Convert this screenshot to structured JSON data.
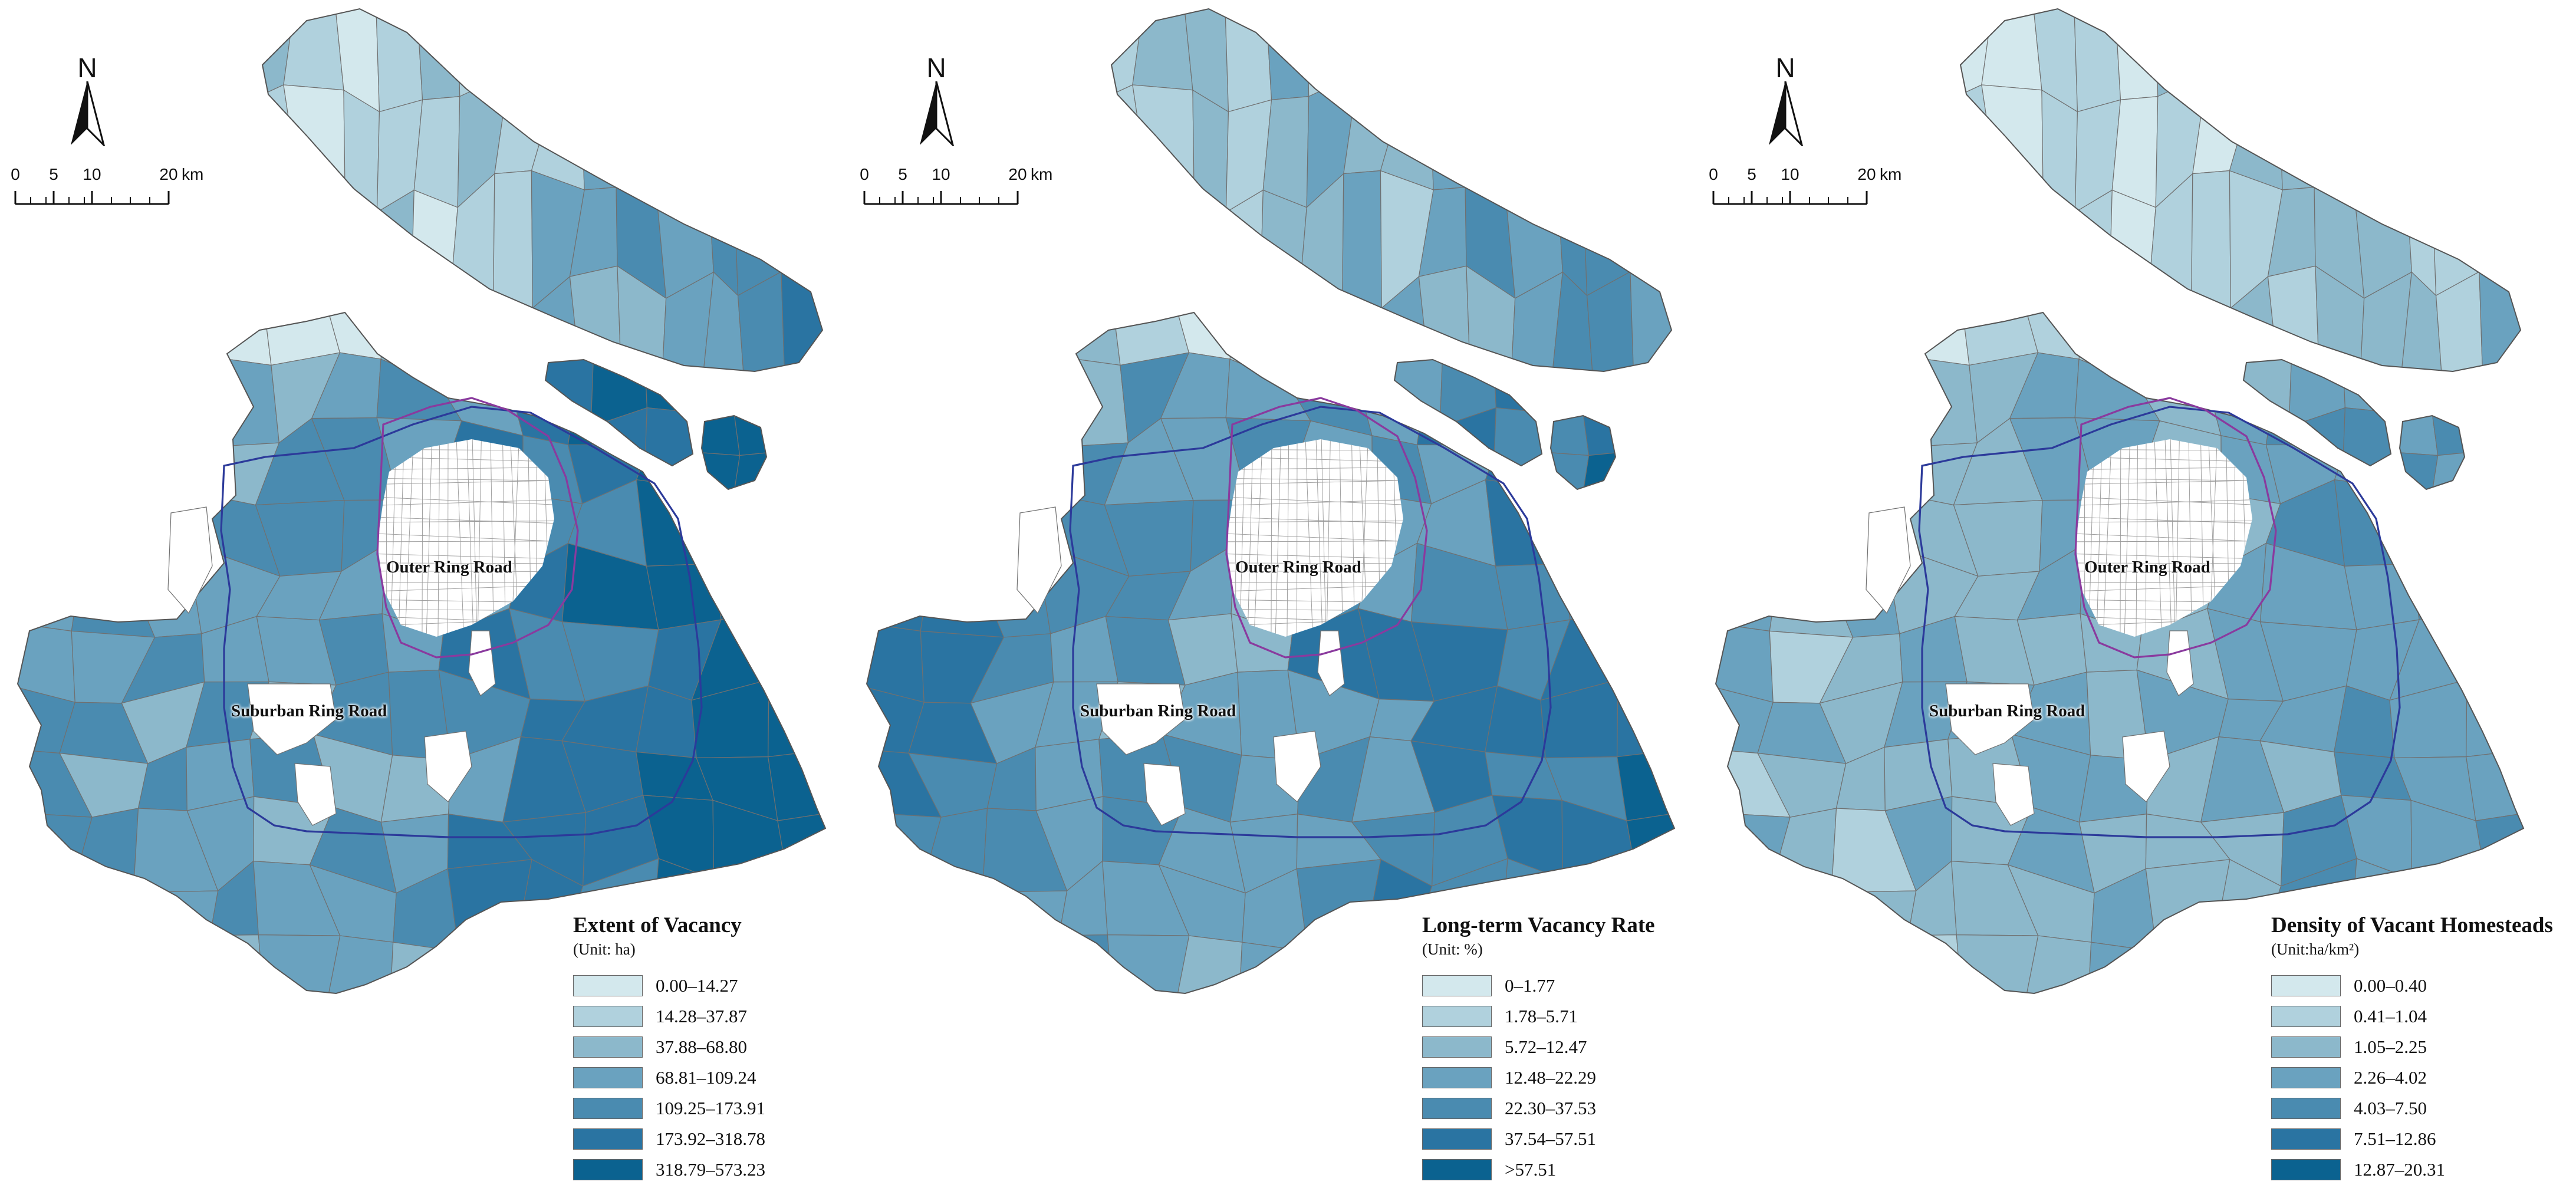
{
  "colors": {
    "class_ramp": [
      "#d3e8ed",
      "#b0d1dd",
      "#8cb8cb",
      "#6aa2bf",
      "#4a8bb0",
      "#2a74a2",
      "#0b6290"
    ],
    "no_data_fill": "#ffffff",
    "outer_ring_road": "#8a3a9e",
    "suburban_ring_road": "#2c3a9a",
    "boundary": "#707070"
  },
  "north_arrow": {
    "letter": "N",
    "icon": "north-arrow-icon"
  },
  "scale_bar": {
    "ticks": [
      "0",
      "5",
      "10",
      "20"
    ],
    "unit": "km"
  },
  "roads": {
    "outer": "Outer Ring Road",
    "suburban": "Suburban Ring Road"
  },
  "panels": [
    {
      "legend": {
        "title": "Extent of Vacancy",
        "unit": "(Unit: ha)",
        "classes": [
          "0.00–14.27",
          "14.28–37.87",
          "37.88–68.80",
          "68.81–109.24",
          "109.25–173.91",
          "173.92–318.78",
          "318.79–573.23"
        ]
      }
    },
    {
      "legend": {
        "title": "Long-term Vacancy Rate",
        "unit": "(Unit: %)",
        "classes": [
          "0–1.77",
          "1.78–5.71",
          "5.72–12.47",
          "12.48–22.29",
          "22.30–37.53",
          "37.54–57.51",
          ">57.51"
        ]
      }
    },
    {
      "legend": {
        "title": "Density of Vacant Homesteads",
        "unit": "(Unit:ha/km²)",
        "classes": [
          "0.00–0.40",
          "0.41–1.04",
          "1.05–2.25",
          "2.26–4.02",
          "4.03–7.50",
          "7.51–12.86",
          "12.87–20.31"
        ]
      }
    }
  ]
}
